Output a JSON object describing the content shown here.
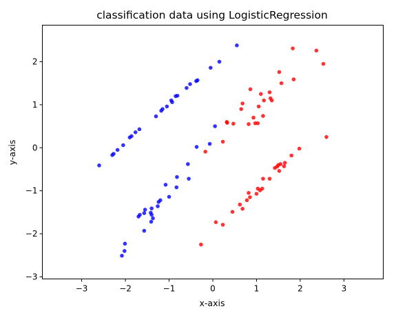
{
  "chart_data": {
    "type": "scatter",
    "title": "classification data using LogisticRegression",
    "xlabel": "x-axis",
    "ylabel": "y-axis",
    "xlim": [
      -3.9,
      3.9
    ],
    "ylim": [
      -3.05,
      2.85
    ],
    "xticks": [
      -3,
      -2,
      -1,
      0,
      1,
      2,
      3
    ],
    "yticks": [
      -3,
      -2,
      -1,
      0,
      1,
      2
    ],
    "grid": false,
    "series": [
      {
        "color": "#0000ff",
        "points": [
          [
            -2.6,
            -0.41
          ],
          [
            -2.3,
            -0.17
          ],
          [
            -2.27,
            -0.14
          ],
          [
            -2.18,
            -0.05
          ],
          [
            -2.05,
            0.06
          ],
          [
            -1.9,
            0.24
          ],
          [
            -1.86,
            0.27
          ],
          [
            -1.77,
            0.36
          ],
          [
            -1.68,
            0.43
          ],
          [
            -1.3,
            0.73
          ],
          [
            -1.18,
            0.86
          ],
          [
            -1.15,
            0.9
          ],
          [
            -1.05,
            0.96
          ],
          [
            -0.95,
            1.1
          ],
          [
            -0.93,
            1.06
          ],
          [
            -0.85,
            1.2
          ],
          [
            -0.81,
            1.21
          ],
          [
            -0.6,
            1.39
          ],
          [
            -0.52,
            1.48
          ],
          [
            -0.38,
            1.55
          ],
          [
            -0.35,
            1.57
          ],
          [
            -0.05,
            1.86
          ],
          [
            0.15,
            2.0
          ],
          [
            0.55,
            2.38
          ],
          [
            0.05,
            0.5
          ],
          [
            -0.07,
            0.09
          ],
          [
            -0.37,
            0.02
          ],
          [
            -0.57,
            -0.38
          ],
          [
            -0.82,
            -0.68
          ],
          [
            -1.08,
            -0.86
          ],
          [
            -0.55,
            -0.72
          ],
          [
            -0.83,
            -0.92
          ],
          [
            -1.0,
            -1.14
          ],
          [
            -1.2,
            -1.22
          ],
          [
            -1.24,
            -1.26
          ],
          [
            -1.26,
            -1.36
          ],
          [
            -1.4,
            -1.41
          ],
          [
            -1.42,
            -1.51
          ],
          [
            -1.55,
            -1.44
          ],
          [
            -1.67,
            -1.56
          ],
          [
            -1.7,
            -1.6
          ],
          [
            -1.57,
            -1.52
          ],
          [
            -1.4,
            -1.56
          ],
          [
            -1.37,
            -1.64
          ],
          [
            -1.41,
            -1.72
          ],
          [
            -1.57,
            -1.93
          ],
          [
            -2.01,
            -2.23
          ],
          [
            -2.02,
            -2.4
          ],
          [
            -2.08,
            -2.51
          ]
        ]
      },
      {
        "color": "#ff0000",
        "points": [
          [
            0.23,
            0.14
          ],
          [
            -0.17,
            -0.09
          ],
          [
            0.32,
            0.6
          ],
          [
            0.33,
            0.58
          ],
          [
            0.47,
            0.56
          ],
          [
            0.65,
            0.9
          ],
          [
            0.68,
            1.03
          ],
          [
            0.82,
            0.55
          ],
          [
            0.86,
            1.36
          ],
          [
            0.93,
            0.7
          ],
          [
            0.97,
            0.57
          ],
          [
            1.03,
            0.57
          ],
          [
            1.05,
            0.96
          ],
          [
            1.1,
            1.25
          ],
          [
            1.15,
            0.74
          ],
          [
            1.17,
            1.1
          ],
          [
            1.3,
            1.29
          ],
          [
            1.32,
            1.15
          ],
          [
            1.35,
            1.1
          ],
          [
            1.52,
            1.76
          ],
          [
            1.57,
            1.5
          ],
          [
            1.85,
            1.59
          ],
          [
            1.83,
            2.31
          ],
          [
            2.37,
            2.26
          ],
          [
            2.53,
            1.95
          ],
          [
            2.6,
            0.25
          ],
          [
            1.98,
            -0.02
          ],
          [
            1.8,
            -0.18
          ],
          [
            1.65,
            -0.35
          ],
          [
            1.63,
            -0.43
          ],
          [
            1.55,
            -0.38
          ],
          [
            1.5,
            -0.4
          ],
          [
            1.47,
            -0.44
          ],
          [
            1.42,
            -0.47
          ],
          [
            1.52,
            -0.54
          ],
          [
            1.3,
            -0.72
          ],
          [
            1.15,
            -0.72
          ],
          [
            1.13,
            -0.95
          ],
          [
            1.08,
            -0.99
          ],
          [
            1.03,
            -0.95
          ],
          [
            1.0,
            -1.07
          ],
          [
            0.82,
            -1.05
          ],
          [
            0.85,
            -1.15
          ],
          [
            0.78,
            -1.22
          ],
          [
            0.68,
            -1.42
          ],
          [
            0.62,
            -1.32
          ],
          [
            0.45,
            -1.49
          ],
          [
            0.23,
            -1.79
          ],
          [
            0.07,
            -1.73
          ],
          [
            -0.27,
            -2.25
          ]
        ]
      }
    ]
  }
}
